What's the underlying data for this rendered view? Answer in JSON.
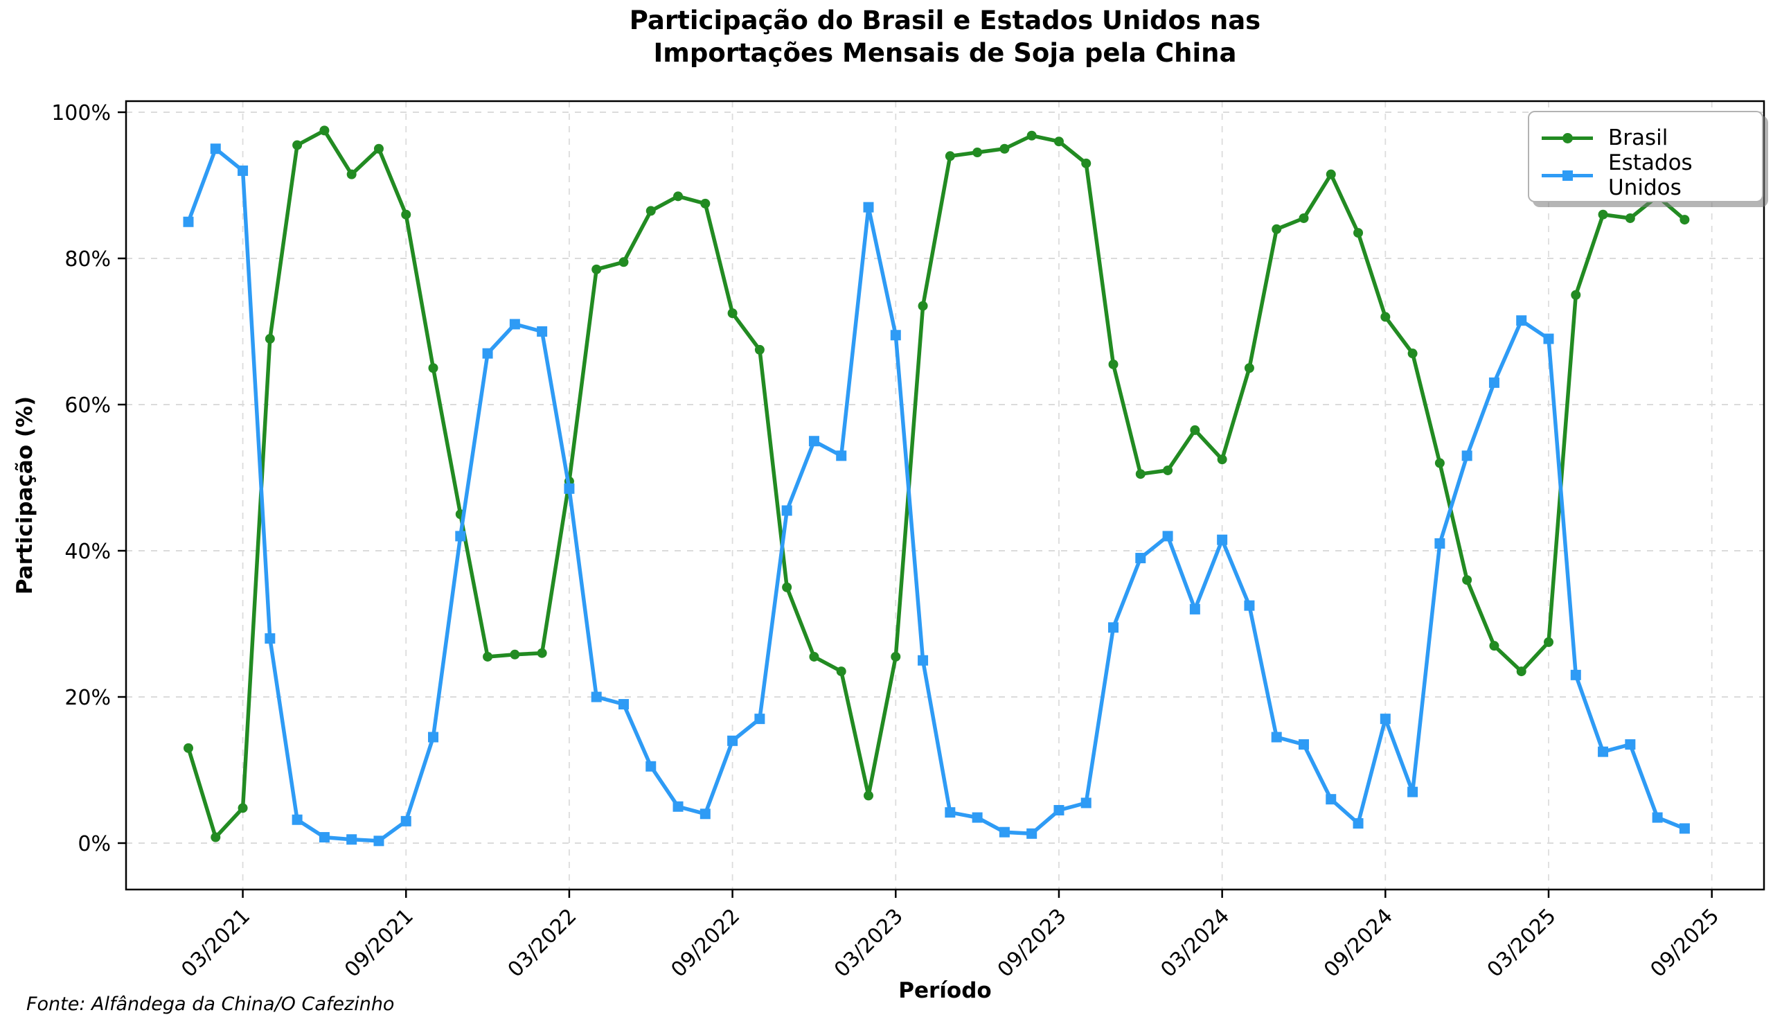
{
  "title": {
    "line1": "Participação do Brasil e Estados Unidos nas",
    "line2": "Importações Mensais de Soja pela China"
  },
  "source": "Fonte: Alfândega da China/O Cafezinho",
  "chart_data": {
    "type": "line",
    "title": "Participação do Brasil e Estados Unidos nas Importações Mensais de Soja pela China",
    "xlabel": "Período",
    "ylabel": "Participação (%)",
    "grid": true,
    "grid_style": "dashed",
    "legend_position": "top-right",
    "y_ticks": [
      0,
      20,
      40,
      60,
      80,
      100
    ],
    "y_tick_labels": [
      "0%",
      "20%",
      "40%",
      "60%",
      "80%",
      "100%"
    ],
    "ylim": [
      -6,
      102.5
    ],
    "x_tick_labels": [
      "03/2021",
      "09/2021",
      "03/2022",
      "09/2022",
      "03/2023",
      "09/2023",
      "03/2024",
      "09/2024",
      "03/2025",
      "09/2025"
    ],
    "x_tick_indices": [
      2,
      8,
      14,
      20,
      26,
      32,
      38,
      44,
      50,
      56
    ],
    "x": [
      "01/2021",
      "02/2021",
      "03/2021",
      "04/2021",
      "05/2021",
      "06/2021",
      "07/2021",
      "08/2021",
      "09/2021",
      "10/2021",
      "11/2021",
      "12/2021",
      "01/2022",
      "02/2022",
      "03/2022",
      "04/2022",
      "05/2022",
      "06/2022",
      "07/2022",
      "08/2022",
      "09/2022",
      "10/2022",
      "11/2022",
      "12/2022",
      "01/2023",
      "02/2023",
      "03/2023",
      "04/2023",
      "05/2023",
      "06/2023",
      "07/2023",
      "08/2023",
      "09/2023",
      "10/2023",
      "11/2023",
      "12/2023",
      "01/2024",
      "02/2024",
      "03/2024",
      "04/2024",
      "05/2024",
      "06/2024",
      "07/2024",
      "08/2024",
      "09/2024",
      "10/2024",
      "11/2024",
      "12/2024",
      "01/2025",
      "02/2025",
      "03/2025",
      "04/2025",
      "05/2025",
      "06/2025",
      "07/2025",
      "08/2025"
    ],
    "series": [
      {
        "name": "Brasil",
        "color": "#228B22",
        "marker": "circle",
        "values": [
          13,
          0.8,
          4.8,
          69,
          95.5,
          97.5,
          91.5,
          95,
          86,
          65,
          45,
          25.5,
          25.8,
          26,
          49.5,
          78.5,
          79.5,
          86.5,
          88.5,
          87.5,
          72.5,
          67.5,
          35,
          25.5,
          23.5,
          6.5,
          25.5,
          73.5,
          94,
          94.5,
          95,
          96.8,
          96,
          93,
          65.5,
          50.5,
          51,
          56.5,
          52.5,
          65,
          84,
          85.5,
          91.5,
          83.5,
          72,
          67,
          52,
          36,
          27,
          23.5,
          27.5,
          75,
          86,
          85.5,
          88.5,
          85.3
        ]
      },
      {
        "name": "Estados Unidos",
        "color": "#2E9BF5",
        "marker": "square",
        "values": [
          85,
          95,
          92,
          28,
          3.2,
          0.8,
          0.5,
          0.3,
          3,
          14.5,
          42,
          67,
          71,
          70,
          48.5,
          20,
          19,
          10.5,
          5,
          4,
          14,
          17,
          45.5,
          55,
          53,
          87,
          69.5,
          25,
          4.2,
          3.5,
          1.5,
          1.3,
          4.5,
          5.5,
          29.5,
          39,
          42,
          32,
          41.5,
          32.5,
          14.5,
          13.5,
          6,
          2.7,
          17,
          7,
          41,
          53,
          63,
          71.5,
          69,
          23,
          12.5,
          13.5,
          3.5,
          2
        ]
      }
    ]
  }
}
